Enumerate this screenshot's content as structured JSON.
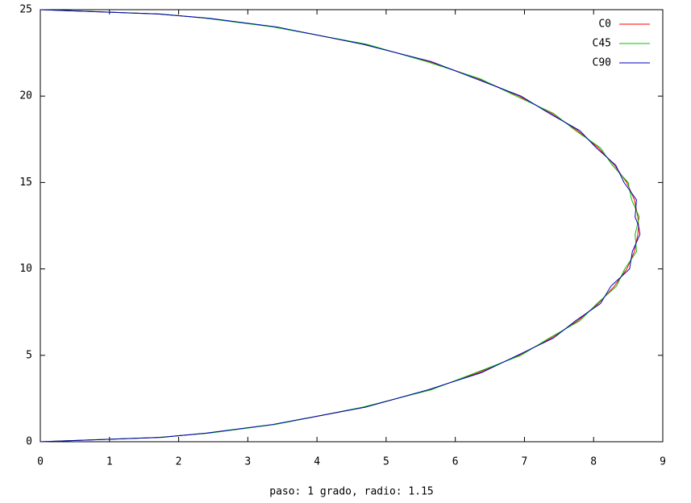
{
  "chart_data": {
    "type": "line",
    "xlabel": "paso: 1 grado, radio: 1.15",
    "xlim": [
      0,
      9
    ],
    "xticks": [
      0,
      1,
      2,
      3,
      4,
      5,
      6,
      7,
      8,
      9
    ],
    "ylim": [
      0,
      25
    ],
    "yticks": [
      0,
      5,
      10,
      15,
      20,
      25
    ],
    "legend": "top right",
    "grid": false,
    "series": [
      {
        "name": "C0",
        "color": "#ff0000",
        "x": [
          0,
          1.72,
          2.42,
          3.39,
          4.69,
          5.62,
          6.34,
          6.92,
          7.39,
          7.77,
          8.07,
          8.3,
          8.48,
          8.59,
          8.64,
          8.65,
          8.64,
          8.59,
          8.48,
          8.3,
          8.07,
          7.77,
          7.39,
          6.92,
          6.34,
          5.62,
          4.69,
          3.39,
          2.42,
          1.72,
          0
        ],
        "values": [
          0,
          0.25,
          0.5,
          1,
          2,
          3,
          4,
          5,
          6,
          7,
          8,
          9,
          10,
          11,
          12,
          12.5,
          13,
          14,
          15,
          16,
          17,
          18,
          19,
          20,
          21,
          22,
          23,
          24,
          24.5,
          24.75,
          25
        ]
      },
      {
        "name": "C45",
        "color": "#00c000",
        "x": [
          0,
          1.7,
          2.45,
          3.4,
          4.66,
          5.65,
          6.3,
          6.95,
          7.36,
          7.8,
          8.05,
          8.33,
          8.45,
          8.62,
          8.6,
          8.63,
          8.66,
          8.55,
          8.5,
          8.27,
          8.1,
          7.74,
          7.42,
          6.88,
          6.36,
          5.58,
          4.72,
          3.36,
          2.4,
          1.75,
          0
        ],
        "values": [
          0,
          0.25,
          0.5,
          1,
          2,
          3,
          4,
          5,
          6,
          7,
          8,
          9,
          10,
          11,
          12,
          12.5,
          13,
          14,
          15,
          16,
          17,
          18,
          19,
          20,
          21,
          22,
          23,
          24,
          24.5,
          24.75,
          25
        ]
      },
      {
        "name": "C90",
        "color": "#0000c0",
        "x": [
          0,
          1.75,
          2.4,
          3.36,
          4.7,
          5.6,
          6.38,
          6.9,
          7.42,
          7.74,
          8.1,
          8.25,
          8.52,
          8.56,
          8.67,
          8.65,
          8.6,
          8.62,
          8.44,
          8.32,
          8.04,
          7.8,
          7.36,
          6.95,
          6.3,
          5.65,
          4.66,
          3.42,
          2.45,
          1.7,
          0
        ],
        "values": [
          0,
          0.25,
          0.5,
          1,
          2,
          3,
          4,
          5,
          6,
          7,
          8,
          9,
          10,
          11,
          12,
          12.5,
          13,
          14,
          15,
          16,
          17,
          18,
          19,
          20,
          21,
          22,
          23,
          24,
          24.5,
          24.75,
          25
        ]
      }
    ]
  }
}
